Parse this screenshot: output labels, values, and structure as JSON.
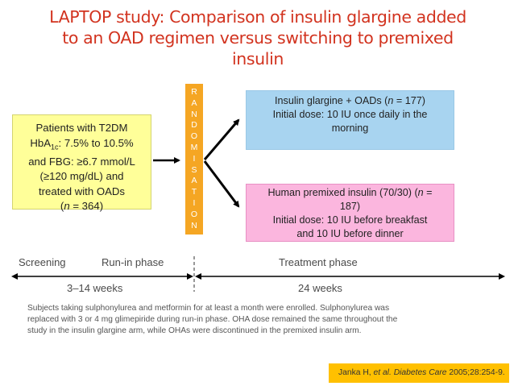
{
  "title": {
    "line1": "LAPTOP study: Comparison of insulin glargine added",
    "line2": "to an OAD regimen versus switching to premixed",
    "line3": "insulin"
  },
  "patients": {
    "line1": "Patients with T2DM",
    "hba_prefix": "HbA",
    "hba_sub": "1c",
    "hba_suffix": ": 7.5% to 10.5%",
    "line3": "and FBG: ≥6.7 mmol/L",
    "line4": "(≥120 mg/dL) and",
    "line5": "treated with OADs",
    "n_open": "(",
    "n_var": "n",
    "n_rest": " = 364)"
  },
  "randomisation_letters": [
    "R",
    "A",
    "N",
    "D",
    "O",
    "M",
    "I",
    "S",
    "A",
    "T",
    "I",
    "O",
    "N"
  ],
  "arm_glargine": {
    "line1_pre": "Insulin glargine + OADs (",
    "n_var": "n",
    "line1_post": " = 177)",
    "line2": "Initial dose: 10 IU once daily in the",
    "line3": "morning"
  },
  "arm_premixed": {
    "line1_pre": "Human premixed insulin (70/30) (",
    "n_var": "n",
    "line1_post": " =",
    "line2": "187)",
    "line3": "Initial dose: 10 IU before breakfast",
    "line4": "and 10 IU before dinner"
  },
  "timeline": {
    "screening": "Screening",
    "runin": "Run-in phase",
    "treatment": "Treatment phase",
    "runin_weeks": "3–14 weeks",
    "treatment_weeks": "24 weeks"
  },
  "footnote": {
    "line1": "Subjects taking sulphonylurea and metformin for at least a month were enrolled. Sulphonylurea was",
    "line2": "replaced with 3 or 4 mg glimepiride during run-in phase. OHA dose remained the same throughout the",
    "line3": "study in the insulin glargine arm, while OHAs were discontinued in the premixed insulin arm."
  },
  "reference": {
    "authors": "Janka H, ",
    "etal": "et al.",
    "journal": " Diabetes Care",
    "citation": " 2005;28:254-9."
  },
  "colors": {
    "title": "#d2331f",
    "patients_box": "#ffff99",
    "randomisation_bar": "#f5a623",
    "arm_glargine_box": "#a8d4f0",
    "arm_premixed_box": "#fbb6de",
    "reference_box": "#ffc000"
  }
}
